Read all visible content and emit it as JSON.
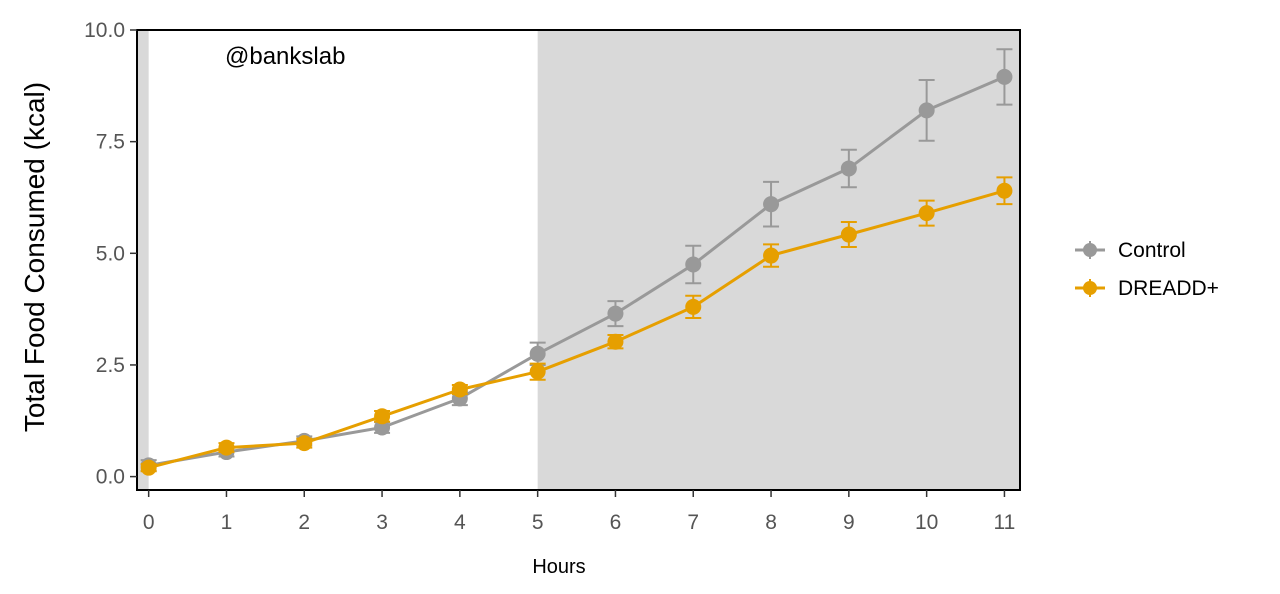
{
  "chart_data": {
    "type": "line",
    "watermark": "@bankslab",
    "xlabel": "Hours",
    "ylabel": "Total Food Consumed (kcal)",
    "x": [
      0,
      1,
      2,
      3,
      4,
      5,
      6,
      7,
      8,
      9,
      10,
      11
    ],
    "xlim": [
      -0.15,
      11.2
    ],
    "ylim": [
      -0.3,
      10.0
    ],
    "x_ticks": [
      "0",
      "1",
      "2",
      "3",
      "4",
      "5",
      "6",
      "7",
      "8",
      "9",
      "10",
      "11"
    ],
    "y_ticks": [
      "0.0",
      "2.5",
      "5.0",
      "7.5",
      "10.0"
    ],
    "y_tick_values": [
      0,
      2.5,
      5.0,
      7.5,
      10.0
    ],
    "shaded_regions": [
      {
        "from": -0.15,
        "to": 0,
        "color": "#d9d9d9"
      },
      {
        "from": 5,
        "to": 11.2,
        "color": "#d9d9d9"
      }
    ],
    "legend_position": "right",
    "series": [
      {
        "name": "Control",
        "color": "#999999",
        "values": [
          0.25,
          0.55,
          0.8,
          1.1,
          1.75,
          2.75,
          3.65,
          4.75,
          6.1,
          6.9,
          8.2,
          8.95
        ],
        "errors": [
          0.12,
          0.1,
          0.1,
          0.12,
          0.15,
          0.25,
          0.28,
          0.42,
          0.5,
          0.42,
          0.68,
          0.62
        ]
      },
      {
        "name": "DREADD+",
        "color": "#E69F00",
        "values": [
          0.2,
          0.65,
          0.75,
          1.35,
          1.95,
          2.35,
          3.02,
          3.8,
          4.95,
          5.42,
          5.9,
          6.4
        ],
        "errors": [
          0.08,
          0.1,
          0.1,
          0.12,
          0.1,
          0.18,
          0.15,
          0.25,
          0.25,
          0.28,
          0.28,
          0.3
        ]
      }
    ]
  }
}
